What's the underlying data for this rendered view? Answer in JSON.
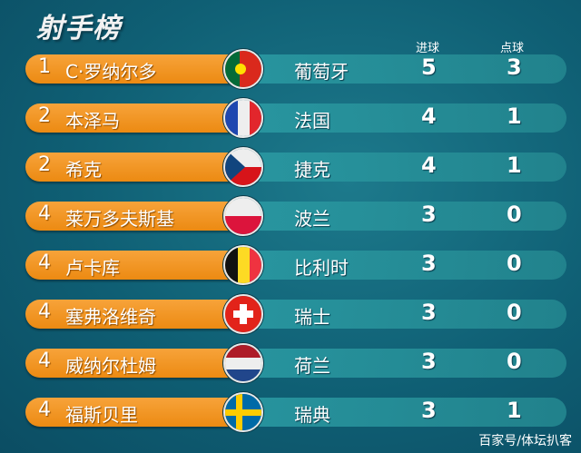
{
  "title": "射手榜",
  "headers": {
    "goals": "进球",
    "penalties": "点球"
  },
  "rows": [
    {
      "rank": "1",
      "player": "C·罗纳尔多",
      "country": "葡萄牙",
      "flag": "portugal-flag-icon",
      "goals": "5",
      "penalties": "3"
    },
    {
      "rank": "2",
      "player": "本泽马",
      "country": "法国",
      "flag": "france-flag-icon",
      "goals": "4",
      "penalties": "1"
    },
    {
      "rank": "2",
      "player": "希克",
      "country": "捷克",
      "flag": "czech-flag-icon",
      "goals": "4",
      "penalties": "1"
    },
    {
      "rank": "4",
      "player": "莱万多夫斯基",
      "country": "波兰",
      "flag": "poland-flag-icon",
      "goals": "3",
      "penalties": "0"
    },
    {
      "rank": "4",
      "player": "卢卡库",
      "country": "比利时",
      "flag": "belgium-flag-icon",
      "goals": "3",
      "penalties": "0"
    },
    {
      "rank": "4",
      "player": "塞弗洛维奇",
      "country": "瑞士",
      "flag": "switzerland-flag-icon",
      "goals": "3",
      "penalties": "0"
    },
    {
      "rank": "4",
      "player": "威纳尔杜姆",
      "country": "荷兰",
      "flag": "netherlands-flag-icon",
      "goals": "3",
      "penalties": "0"
    },
    {
      "rank": "4",
      "player": "福斯贝里",
      "country": "瑞典",
      "flag": "sweden-flag-icon",
      "goals": "3",
      "penalties": "1"
    }
  ],
  "watermark": "百家号/体坛扒客"
}
